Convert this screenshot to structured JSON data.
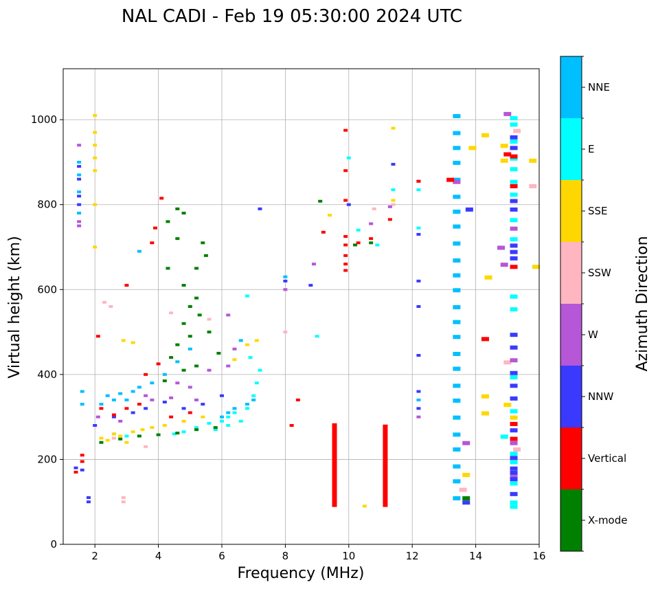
{
  "chart_data": {
    "type": "scatter",
    "title": "NAL CADI - Feb 19 05:30:00 2024 UTC",
    "xlabel": "Frequency (MHz)",
    "ylabel": "Virtual height (km)",
    "xlim": [
      1,
      16
    ],
    "ylim": [
      0,
      1120
    ],
    "xticks": [
      2,
      4,
      6,
      8,
      10,
      12,
      14,
      16
    ],
    "yticks": [
      0,
      200,
      400,
      600,
      800,
      1000
    ],
    "grid": true,
    "colorbar": {
      "title": "Azimuth Direction",
      "categories": [
        {
          "name": "X-mode",
          "color": "#008000"
        },
        {
          "name": "Vertical",
          "color": "#ff0000"
        },
        {
          "name": "NNW",
          "color": "#3a3aff"
        },
        {
          "name": "W",
          "color": "#b557d6"
        },
        {
          "name": "SSW",
          "color": "#ffb6c1"
        },
        {
          "name": "SSE",
          "color": "#ffd700"
        },
        {
          "name": "E",
          "color": "#00ffff"
        },
        {
          "name": "NNE",
          "color": "#00bfff"
        }
      ]
    },
    "series": [
      {
        "name": "NNE",
        "points": [
          [
            1.5,
            900
          ],
          [
            1.5,
            870
          ],
          [
            1.5,
            830
          ],
          [
            1.5,
            780
          ],
          [
            1.6,
            360
          ],
          [
            1.6,
            330
          ],
          [
            2.2,
            330
          ],
          [
            2.4,
            350
          ],
          [
            2.6,
            340
          ],
          [
            2.8,
            355
          ],
          [
            3.0,
            340
          ],
          [
            3.2,
            360
          ],
          [
            3.4,
            370
          ],
          [
            3.8,
            380
          ],
          [
            4.2,
            400
          ],
          [
            4.6,
            430
          ],
          [
            5.0,
            460
          ],
          [
            6.6,
            480
          ],
          [
            6.8,
            330
          ],
          [
            7.0,
            340
          ],
          [
            3.4,
            690
          ],
          [
            13.4,
            1010
          ],
          [
            13.4,
            970
          ],
          [
            13.4,
            935
          ],
          [
            13.4,
            900
          ],
          [
            13.4,
            860
          ],
          [
            13.4,
            820
          ],
          [
            13.4,
            785
          ],
          [
            13.4,
            750
          ],
          [
            13.4,
            710
          ],
          [
            13.4,
            670
          ],
          [
            13.4,
            635
          ],
          [
            13.4,
            600
          ],
          [
            13.4,
            560
          ],
          [
            13.4,
            525
          ],
          [
            13.4,
            490
          ],
          [
            13.4,
            450
          ],
          [
            13.4,
            415
          ],
          [
            13.4,
            375
          ],
          [
            13.4,
            340
          ],
          [
            13.4,
            300
          ],
          [
            13.4,
            260
          ],
          [
            13.4,
            225
          ],
          [
            13.4,
            185
          ],
          [
            13.4,
            150
          ],
          [
            13.4,
            110
          ],
          [
            6.0,
            300
          ],
          [
            6.2,
            310
          ],
          [
            6.4,
            320
          ],
          [
            12.2,
            340
          ],
          [
            8.0,
            630
          ]
        ]
      },
      {
        "name": "E",
        "points": [
          [
            4.5,
            260
          ],
          [
            4.8,
            265
          ],
          [
            5.2,
            275
          ],
          [
            5.6,
            285
          ],
          [
            6.0,
            290
          ],
          [
            6.2,
            300
          ],
          [
            6.4,
            310
          ],
          [
            6.6,
            290
          ],
          [
            6.8,
            320
          ],
          [
            7.0,
            350
          ],
          [
            7.1,
            380
          ],
          [
            7.2,
            410
          ],
          [
            6.9,
            440
          ],
          [
            6.2,
            280
          ],
          [
            5.8,
            270
          ],
          [
            3.0,
            255
          ],
          [
            2.6,
            260
          ],
          [
            9.0,
            490
          ],
          [
            10.3,
            740
          ],
          [
            10.9,
            705
          ],
          [
            11.4,
            835
          ],
          [
            12.2,
            745
          ],
          [
            12.2,
            835
          ],
          [
            15.2,
            1005
          ],
          [
            15.2,
            990
          ],
          [
            15.2,
            950
          ],
          [
            15.2,
            910
          ],
          [
            15.2,
            885
          ],
          [
            15.2,
            855
          ],
          [
            15.2,
            825
          ],
          [
            15.2,
            765
          ],
          [
            15.2,
            720
          ],
          [
            15.2,
            585
          ],
          [
            15.2,
            555
          ],
          [
            15.2,
            395
          ],
          [
            15.2,
            315
          ],
          [
            15.2,
            215
          ],
          [
            15.2,
            195
          ],
          [
            15.2,
            145
          ],
          [
            15.2,
            100
          ],
          [
            15.2,
            90
          ],
          [
            14.9,
            255
          ],
          [
            10.0,
            910
          ],
          [
            6.8,
            585
          ]
        ]
      },
      {
        "name": "SSE",
        "points": [
          [
            2.0,
            1010
          ],
          [
            2.0,
            970
          ],
          [
            2.0,
            940
          ],
          [
            2.0,
            910
          ],
          [
            2.0,
            880
          ],
          [
            2.0,
            800
          ],
          [
            2.0,
            700
          ],
          [
            2.2,
            250
          ],
          [
            2.4,
            245
          ],
          [
            2.6,
            260
          ],
          [
            2.8,
            255
          ],
          [
            3.0,
            240
          ],
          [
            3.2,
            265
          ],
          [
            3.5,
            270
          ],
          [
            3.8,
            275
          ],
          [
            4.2,
            280
          ],
          [
            4.8,
            290
          ],
          [
            5.4,
            300
          ],
          [
            6.4,
            435
          ],
          [
            6.8,
            470
          ],
          [
            7.1,
            480
          ],
          [
            2.9,
            480
          ],
          [
            3.2,
            475
          ],
          [
            9.4,
            775
          ],
          [
            11.4,
            980
          ],
          [
            11.4,
            810
          ],
          [
            10.5,
            90
          ],
          [
            13.7,
            165
          ],
          [
            13.7,
            105
          ],
          [
            13.9,
            935
          ],
          [
            14.3,
            965
          ],
          [
            14.4,
            630
          ],
          [
            14.3,
            350
          ],
          [
            14.3,
            310
          ],
          [
            14.9,
            940
          ],
          [
            14.9,
            905
          ],
          [
            15.8,
            905
          ],
          [
            15.9,
            655
          ],
          [
            15.2,
            300
          ],
          [
            15.0,
            330
          ]
        ]
      },
      {
        "name": "SSW",
        "points": [
          [
            2.9,
            110
          ],
          [
            2.9,
            100
          ],
          [
            2.3,
            570
          ],
          [
            2.5,
            560
          ],
          [
            2.2,
            240
          ],
          [
            2.6,
            250
          ],
          [
            3.6,
            230
          ],
          [
            4.4,
            545
          ],
          [
            5.6,
            530
          ],
          [
            10.8,
            790
          ],
          [
            11.4,
            800
          ],
          [
            15.0,
            430
          ],
          [
            15.8,
            845
          ],
          [
            15.3,
            225
          ],
          [
            15.3,
            975
          ],
          [
            13.6,
            130
          ],
          [
            8.0,
            500
          ]
        ]
      },
      {
        "name": "W",
        "points": [
          [
            1.5,
            940
          ],
          [
            1.5,
            760
          ],
          [
            1.5,
            750
          ],
          [
            2.1,
            300
          ],
          [
            2.8,
            290
          ],
          [
            3.6,
            350
          ],
          [
            3.8,
            340
          ],
          [
            4.4,
            345
          ],
          [
            5.0,
            370
          ],
          [
            5.6,
            410
          ],
          [
            6.2,
            420
          ],
          [
            6.4,
            460
          ],
          [
            6.2,
            540
          ],
          [
            8.0,
            600
          ],
          [
            8.9,
            660
          ],
          [
            10.7,
            755
          ],
          [
            11.3,
            795
          ],
          [
            14.8,
            700
          ],
          [
            14.9,
            660
          ],
          [
            15.0,
            1015
          ],
          [
            15.2,
            745
          ],
          [
            15.2,
            435
          ],
          [
            15.2,
            240
          ],
          [
            15.2,
            160
          ],
          [
            13.7,
            240
          ],
          [
            4.6,
            380
          ],
          [
            5.2,
            340
          ],
          [
            12.2,
            300
          ],
          [
            13.4,
            855
          ]
        ]
      },
      {
        "name": "NNW",
        "points": [
          [
            1.5,
            890
          ],
          [
            1.5,
            860
          ],
          [
            1.5,
            820
          ],
          [
            1.5,
            800
          ],
          [
            1.4,
            180
          ],
          [
            1.6,
            175
          ],
          [
            1.8,
            110
          ],
          [
            1.8,
            100
          ],
          [
            2.0,
            280
          ],
          [
            2.6,
            300
          ],
          [
            3.2,
            310
          ],
          [
            3.6,
            320
          ],
          [
            4.2,
            335
          ],
          [
            4.8,
            320
          ],
          [
            5.4,
            330
          ],
          [
            6.0,
            350
          ],
          [
            7.2,
            790
          ],
          [
            8.8,
            610
          ],
          [
            8.0,
            620
          ],
          [
            10.0,
            800
          ],
          [
            11.4,
            895
          ],
          [
            12.2,
            855
          ],
          [
            12.2,
            730
          ],
          [
            12.2,
            620
          ],
          [
            12.2,
            560
          ],
          [
            12.2,
            445
          ],
          [
            12.2,
            360
          ],
          [
            12.2,
            320
          ],
          [
            13.8,
            790
          ],
          [
            15.2,
            960
          ],
          [
            15.2,
            935
          ],
          [
            15.2,
            810
          ],
          [
            15.2,
            790
          ],
          [
            15.2,
            705
          ],
          [
            15.2,
            690
          ],
          [
            15.2,
            675
          ],
          [
            15.2,
            495
          ],
          [
            15.2,
            465
          ],
          [
            15.2,
            405
          ],
          [
            15.2,
            375
          ],
          [
            15.2,
            345
          ],
          [
            15.2,
            270
          ],
          [
            15.2,
            205
          ],
          [
            15.2,
            180
          ],
          [
            15.2,
            170
          ],
          [
            15.2,
            155
          ],
          [
            15.2,
            120
          ],
          [
            13.7,
            100
          ]
        ]
      },
      {
        "name": "Vertical",
        "points": [
          [
            1.4,
            170
          ],
          [
            1.6,
            210
          ],
          [
            1.6,
            195
          ],
          [
            2.1,
            490
          ],
          [
            2.2,
            320
          ],
          [
            2.6,
            305
          ],
          [
            3.0,
            320
          ],
          [
            3.4,
            330
          ],
          [
            3.6,
            400
          ],
          [
            4.0,
            425
          ],
          [
            4.4,
            300
          ],
          [
            5.0,
            310
          ],
          [
            3.9,
            745
          ],
          [
            4.1,
            815
          ],
          [
            3.8,
            710
          ],
          [
            3.0,
            610
          ],
          [
            8.4,
            340
          ],
          [
            8.2,
            280
          ],
          [
            9.2,
            735
          ],
          [
            9.9,
            975
          ],
          [
            9.9,
            880
          ],
          [
            9.9,
            810
          ],
          [
            9.9,
            725
          ],
          [
            9.9,
            705
          ],
          [
            9.9,
            680
          ],
          [
            9.9,
            660
          ],
          [
            9.9,
            645
          ],
          [
            10.7,
            720
          ],
          [
            11.3,
            765
          ],
          [
            14.3,
            485
          ],
          [
            15.0,
            920
          ],
          [
            15.2,
            915
          ],
          [
            15.2,
            845
          ],
          [
            15.2,
            655
          ],
          [
            15.2,
            285
          ],
          [
            15.2,
            250
          ],
          [
            13.2,
            860
          ],
          [
            12.2,
            855
          ],
          [
            10.3,
            710
          ]
        ]
      },
      {
        "name": "X-mode",
        "points": [
          [
            2.2,
            240
          ],
          [
            2.8,
            248
          ],
          [
            3.4,
            255
          ],
          [
            4.0,
            258
          ],
          [
            4.6,
            262
          ],
          [
            5.2,
            270
          ],
          [
            5.8,
            275
          ],
          [
            4.6,
            790
          ],
          [
            4.8,
            780
          ],
          [
            4.3,
            760
          ],
          [
            4.6,
            720
          ],
          [
            4.3,
            650
          ],
          [
            4.8,
            610
          ],
          [
            5.2,
            580
          ],
          [
            5.0,
            560
          ],
          [
            4.8,
            520
          ],
          [
            5.0,
            490
          ],
          [
            4.6,
            470
          ],
          [
            4.4,
            440
          ],
          [
            4.8,
            410
          ],
          [
            5.2,
            420
          ],
          [
            4.2,
            385
          ],
          [
            5.4,
            710
          ],
          [
            5.5,
            680
          ],
          [
            5.2,
            650
          ],
          [
            5.3,
            540
          ],
          [
            5.6,
            500
          ],
          [
            5.9,
            450
          ],
          [
            9.1,
            808
          ],
          [
            10.2,
            705
          ],
          [
            10.7,
            710
          ],
          [
            13.7,
            110
          ]
        ]
      }
    ],
    "bars": [
      {
        "series": "Vertical",
        "x": 9.55,
        "y0": 88,
        "y1": 285
      },
      {
        "series": "Vertical",
        "x": 11.15,
        "y0": 88,
        "y1": 282
      }
    ]
  }
}
